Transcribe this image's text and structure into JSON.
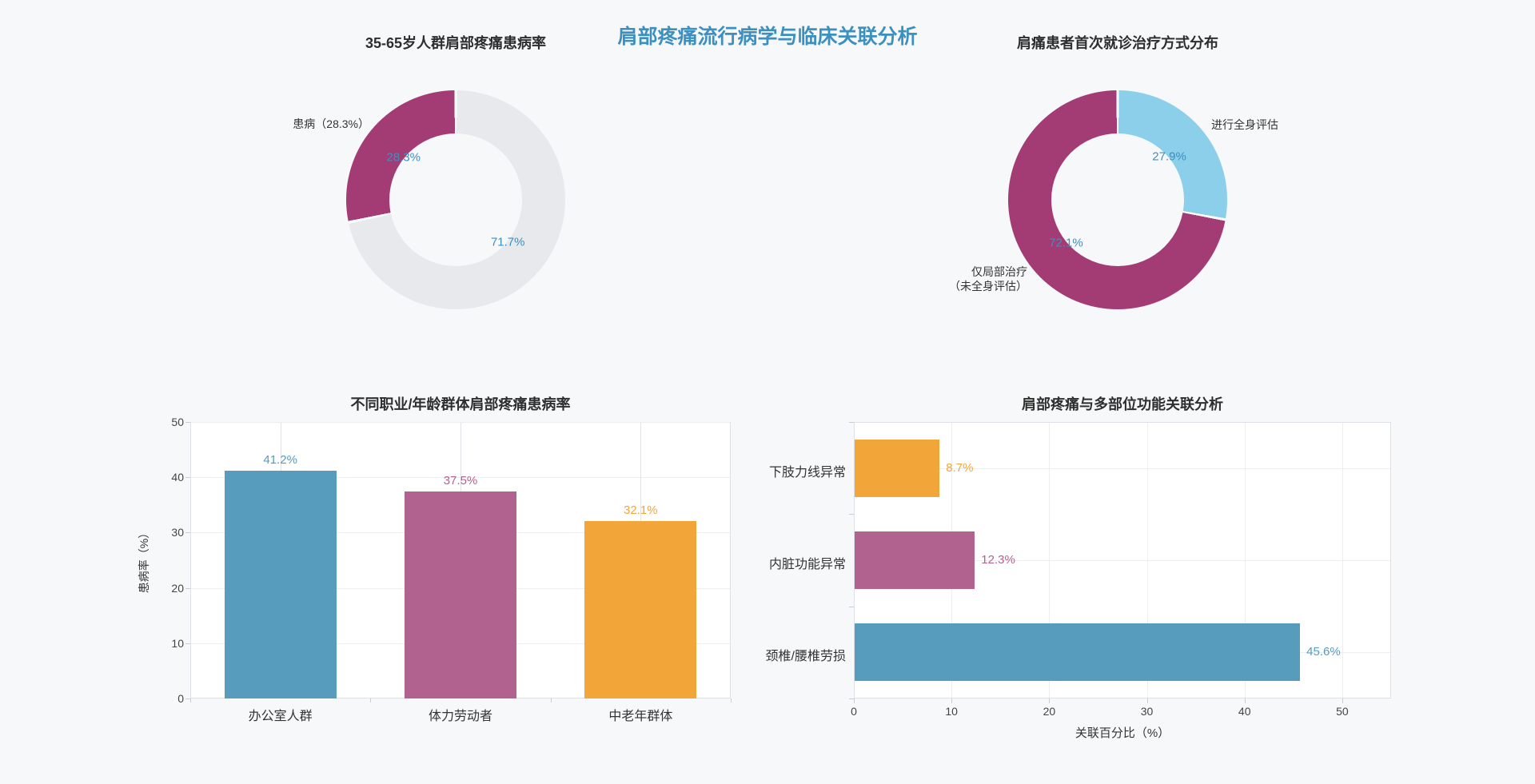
{
  "page": {
    "title": "肩部疼痛流行病学与临床关联分析",
    "title_color": "#3c90c0",
    "background_color": "#f7f8fa"
  },
  "chart_data": [
    {
      "id": "age-prevalence-donut",
      "type": "pie",
      "title": "35-65岁人群肩部疼痛患病率",
      "direction": "ccw",
      "inside_label_color": "#3e8fc0",
      "slices": [
        {
          "label": "患病",
          "value": 28.3,
          "percent_label": "28.3%",
          "color": "#a33b74"
        },
        {
          "label": "",
          "value": 71.7,
          "percent_label": "71.7%",
          "color": "#e7e9ed"
        }
      ],
      "outside_labels": [
        {
          "text": "患病（28.3%）"
        }
      ]
    },
    {
      "id": "treatment-distribution-donut",
      "type": "pie",
      "title": "肩痛患者首次就诊治疗方式分布",
      "direction": "cw",
      "inside_label_color": "#3e8fc0",
      "slices": [
        {
          "label": "进行全身评估",
          "value": 27.9,
          "percent_label": "27.9%",
          "color": "#8bcfeb"
        },
        {
          "label": "仅局部治疗（未全身评估）",
          "value": 72.1,
          "percent_label": "72.1%",
          "color": "#a33b74"
        }
      ],
      "outside_labels": [
        {
          "text": "进行全身评估"
        },
        {
          "text": "仅局部治疗\n（未全身评估）"
        }
      ]
    },
    {
      "id": "occupation-prevalence-bars",
      "type": "bar",
      "title": "不同职业/年龄群体肩部疼痛患病率",
      "categories": [
        "办公室人群",
        "体力劳动者",
        "中老年群体"
      ],
      "values": [
        41.2,
        37.5,
        32.1
      ],
      "value_labels": [
        "41.2%",
        "37.5%",
        "32.1%"
      ],
      "colors": [
        "#579cbd",
        "#b2628f",
        "#f2a63a"
      ],
      "ylabel": "患病率（%）",
      "yticks": [
        0,
        10,
        20,
        30,
        40,
        50
      ],
      "ylim": [
        0,
        50
      ]
    },
    {
      "id": "multisite-association-bars",
      "type": "bar-horizontal",
      "title": "肩部疼痛与多部位功能关联分析",
      "categories": [
        "下肢力线异常",
        "内脏功能异常",
        "颈椎/腰椎劳损"
      ],
      "values": [
        8.7,
        12.3,
        45.6
      ],
      "value_labels": [
        "8.7%",
        "12.3%",
        "45.6%"
      ],
      "colors": [
        "#f2a63a",
        "#b2628f",
        "#579cbd"
      ],
      "xlabel": "关联百分比（%）",
      "xticks": [
        0,
        10,
        20,
        30,
        40,
        50
      ],
      "xlim": [
        0,
        55
      ]
    }
  ]
}
